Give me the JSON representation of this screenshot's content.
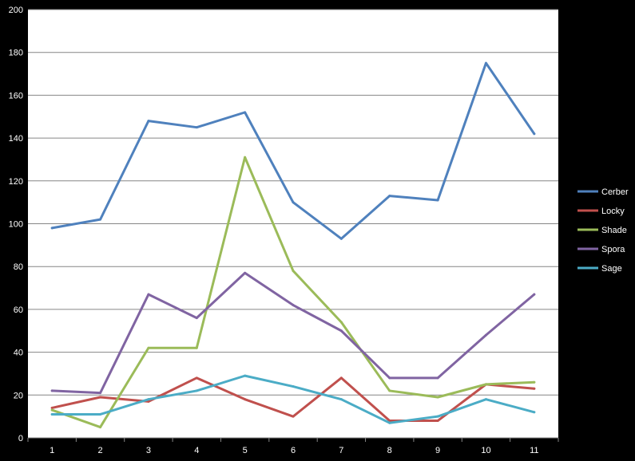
{
  "chart_data": {
    "type": "line",
    "title": "",
    "xlabel": "",
    "ylabel": "",
    "categories": [
      "1",
      "2",
      "3",
      "4",
      "5",
      "6",
      "7",
      "8",
      "9",
      "10",
      "11"
    ],
    "ylim": [
      0,
      200
    ],
    "yticks": [
      0,
      20,
      40,
      60,
      80,
      100,
      120,
      140,
      160,
      180,
      200
    ],
    "grid": true,
    "legend_position": "right",
    "series": [
      {
        "name": "Cerber",
        "color": "#4f81bd",
        "values": [
          98,
          102,
          148,
          145,
          152,
          110,
          93,
          113,
          111,
          175,
          142
        ]
      },
      {
        "name": "Locky",
        "color": "#c0504d",
        "values": [
          14,
          19,
          17,
          28,
          18,
          10,
          28,
          8,
          8,
          25,
          23
        ]
      },
      {
        "name": "Shade",
        "color": "#9bbb59",
        "values": [
          13,
          5,
          42,
          42,
          131,
          78,
          54,
          22,
          19,
          25,
          26
        ]
      },
      {
        "name": "Spora",
        "color": "#8064a2",
        "values": [
          22,
          21,
          67,
          56,
          77,
          62,
          50,
          28,
          28,
          48,
          67
        ]
      },
      {
        "name": "Sage",
        "color": "#4bacc6",
        "values": [
          11,
          11,
          18,
          22,
          29,
          24,
          18,
          7,
          10,
          18,
          12
        ]
      }
    ]
  }
}
